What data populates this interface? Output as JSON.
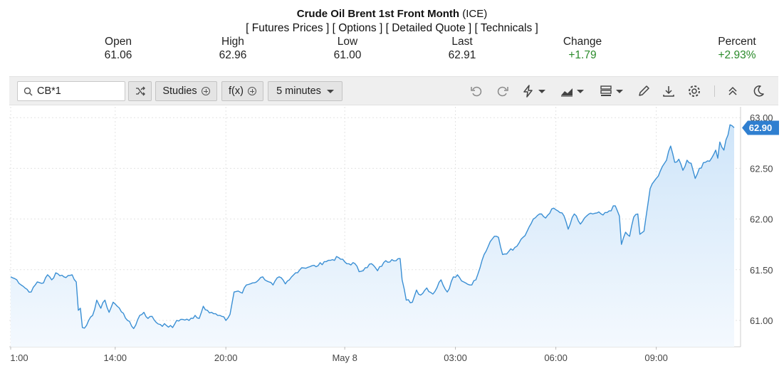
{
  "header": {
    "title_bold": "Crude Oil Brent 1st Front Month",
    "title_suffix": "(ICE)",
    "links": [
      "[ Futures Prices ]",
      "[ Options ]",
      "[ Detailed Quote ]",
      "[ Technicals ]"
    ]
  },
  "quote": [
    {
      "label": "Open",
      "value": "61.06",
      "positive": false
    },
    {
      "label": "High",
      "value": "62.96",
      "positive": false
    },
    {
      "label": "Low",
      "value": "61.00",
      "positive": false
    },
    {
      "label": "Last",
      "value": "62.91",
      "positive": false
    },
    {
      "label": "Change",
      "value": "+1.79",
      "positive": true
    },
    {
      "label": "Percent",
      "value": "+2.93%",
      "positive": true
    }
  ],
  "toolbar": {
    "symbol_value": "CB*1",
    "studies_label": "Studies",
    "fx_label": "f(x)",
    "interval_label": "5 minutes",
    "icons": [
      "undo-icon",
      "redo-icon",
      "lightning-icon",
      "chart-type-icon",
      "layout-icon",
      "pencil-icon",
      "download-icon",
      "settings-icon",
      "collapse-icon",
      "dark-mode-icon"
    ]
  },
  "colors": {
    "line": "#3a8fd4",
    "area_top": "#cfe5f9",
    "area_bottom": "#f4f9fe",
    "price_tag": "#2f7fd0",
    "positive": "#2a8a2a"
  },
  "chart_data": {
    "type": "area",
    "ylim": [
      60.75,
      63.1
    ],
    "yticks": [
      "61.00",
      "61.50",
      "62.00",
      "62.50",
      "63.00"
    ],
    "ytick_values": [
      61.0,
      61.5,
      62.0,
      62.5,
      63.0
    ],
    "xtick_labels": [
      "1:00",
      "14:00",
      "20:00",
      "May 8",
      "03:00",
      "06:00",
      "09:00"
    ],
    "xtick_index": [
      0,
      51,
      105,
      163,
      217,
      266,
      315
    ],
    "n_points": 354,
    "current_price": "62.90",
    "grid": true,
    "series": [
      {
        "keypoints": [
          [
            0,
            61.43
          ],
          [
            3,
            61.4
          ],
          [
            7,
            61.32
          ],
          [
            10,
            61.28
          ],
          [
            13,
            61.38
          ],
          [
            16,
            61.37
          ],
          [
            18,
            61.45
          ],
          [
            20,
            61.4
          ],
          [
            22,
            61.47
          ],
          [
            26,
            61.43
          ],
          [
            30,
            61.45
          ],
          [
            32,
            61.38
          ],
          [
            33,
            61.1
          ],
          [
            34,
            61.12
          ],
          [
            35,
            60.93
          ],
          [
            37,
            60.95
          ],
          [
            40,
            61.05
          ],
          [
            42,
            61.2
          ],
          [
            44,
            61.12
          ],
          [
            46,
            61.2
          ],
          [
            48,
            61.08
          ],
          [
            50,
            61.18
          ],
          [
            52,
            61.14
          ],
          [
            55,
            61.07
          ],
          [
            57,
            61.0
          ],
          [
            60,
            60.92
          ],
          [
            63,
            61.05
          ],
          [
            65,
            61.08
          ],
          [
            67,
            61.02
          ],
          [
            69,
            61.04
          ],
          [
            71,
            60.98
          ],
          [
            73,
            60.96
          ],
          [
            76,
            60.95
          ],
          [
            79,
            60.93
          ],
          [
            81,
            61.0
          ],
          [
            84,
            61.01
          ],
          [
            87,
            61.0
          ],
          [
            90,
            61.05
          ],
          [
            92,
            61.02
          ],
          [
            94,
            61.14
          ],
          [
            96,
            61.1
          ],
          [
            98,
            61.08
          ],
          [
            101,
            61.05
          ],
          [
            103,
            61.04
          ],
          [
            105,
            61.0
          ],
          [
            107,
            61.06
          ],
          [
            109,
            61.28
          ],
          [
            111,
            61.29
          ],
          [
            113,
            61.27
          ],
          [
            115,
            61.35
          ],
          [
            118,
            61.37
          ],
          [
            121,
            61.4
          ],
          [
            123,
            61.43
          ],
          [
            126,
            61.38
          ],
          [
            128,
            61.35
          ],
          [
            131,
            61.43
          ],
          [
            134,
            61.36
          ],
          [
            136,
            61.4
          ],
          [
            139,
            61.47
          ],
          [
            142,
            61.52
          ],
          [
            146,
            61.53
          ],
          [
            150,
            61.54
          ],
          [
            153,
            61.58
          ],
          [
            157,
            61.6
          ],
          [
            160,
            61.62
          ],
          [
            164,
            61.56
          ],
          [
            168,
            61.56
          ],
          [
            170,
            61.48
          ],
          [
            173,
            61.52
          ],
          [
            176,
            61.56
          ],
          [
            179,
            61.49
          ],
          [
            182,
            61.57
          ],
          [
            186,
            61.6
          ],
          [
            190,
            61.61
          ],
          [
            191,
            61.4
          ],
          [
            193,
            61.2
          ],
          [
            196,
            61.18
          ],
          [
            198,
            61.3
          ],
          [
            200,
            61.25
          ],
          [
            203,
            61.32
          ],
          [
            206,
            61.26
          ],
          [
            210,
            61.4
          ],
          [
            213,
            61.28
          ],
          [
            216,
            61.43
          ],
          [
            218,
            61.45
          ],
          [
            221,
            61.38
          ],
          [
            224,
            61.35
          ],
          [
            227,
            61.4
          ],
          [
            229,
            61.52
          ],
          [
            231,
            61.65
          ],
          [
            233,
            61.73
          ],
          [
            236,
            61.83
          ],
          [
            238,
            61.82
          ],
          [
            240,
            61.65
          ],
          [
            243,
            61.68
          ],
          [
            246,
            61.72
          ],
          [
            249,
            61.8
          ],
          [
            252,
            61.88
          ],
          [
            255,
            62.0
          ],
          [
            258,
            62.05
          ],
          [
            261,
            62.01
          ],
          [
            264,
            62.1
          ],
          [
            267,
            62.08
          ],
          [
            270,
            62.03
          ],
          [
            272,
            61.9
          ],
          [
            275,
            62.05
          ],
          [
            278,
            61.95
          ],
          [
            281,
            62.03
          ],
          [
            284,
            62.05
          ],
          [
            286,
            62.06
          ],
          [
            289,
            62.04
          ],
          [
            292,
            62.08
          ],
          [
            295,
            62.13
          ],
          [
            297,
            62.03
          ],
          [
            298,
            61.75
          ],
          [
            300,
            61.87
          ],
          [
            302,
            61.83
          ],
          [
            304,
            62.02
          ],
          [
            306,
            62.05
          ],
          [
            307,
            61.85
          ],
          [
            309,
            61.88
          ],
          [
            310,
            62.02
          ],
          [
            312,
            62.3
          ],
          [
            315,
            62.4
          ],
          [
            318,
            62.52
          ],
          [
            320,
            62.58
          ],
          [
            322,
            62.72
          ],
          [
            324,
            62.56
          ],
          [
            326,
            62.59
          ],
          [
            328,
            62.48
          ],
          [
            330,
            62.58
          ],
          [
            332,
            62.55
          ],
          [
            334,
            62.4
          ],
          [
            336,
            62.5
          ],
          [
            339,
            62.56
          ],
          [
            342,
            62.6
          ],
          [
            344,
            62.68
          ],
          [
            345,
            62.6
          ],
          [
            346,
            62.76
          ],
          [
            348,
            62.68
          ],
          [
            349,
            62.78
          ],
          [
            350,
            62.83
          ],
          [
            351,
            62.93
          ],
          [
            352,
            62.92
          ],
          [
            353,
            62.9
          ]
        ]
      }
    ]
  }
}
